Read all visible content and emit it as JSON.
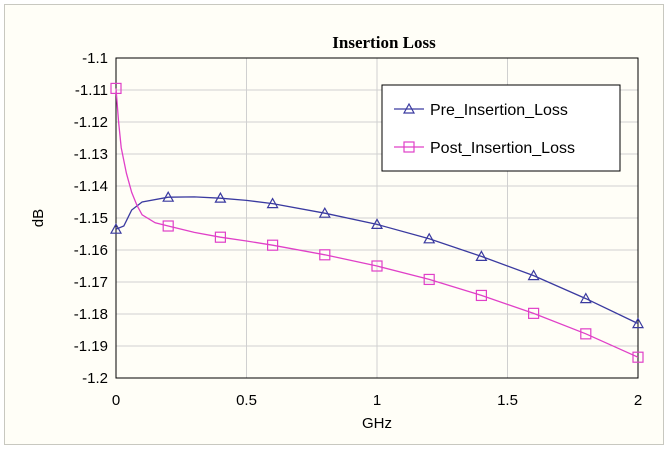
{
  "chart_data": {
    "type": "line",
    "title": "Insertion Loss",
    "xlabel": "GHz",
    "ylabel": "dB",
    "xlim": [
      0,
      2
    ],
    "ylim": [
      -1.2,
      -1.1
    ],
    "xticks": [
      "0",
      "0.5",
      "1",
      "1.5",
      "2"
    ],
    "yticks": [
      "-1.1",
      "-1.11",
      "-1.12",
      "-1.13",
      "-1.14",
      "-1.15",
      "-1.16",
      "-1.17",
      "-1.18",
      "-1.19",
      "-1.2"
    ],
    "grid": true,
    "legend_position": "top-right",
    "series": [
      {
        "name": "Pre_Insertion_Loss",
        "color": "#3a3aa0",
        "marker": "triangle",
        "x": [
          0,
          0.03,
          0.06,
          0.1,
          0.2,
          0.3,
          0.4,
          0.5,
          0.6,
          0.8,
          1.0,
          1.2,
          1.4,
          1.6,
          1.8,
          2.0
        ],
        "y": [
          -1.1535,
          -1.1525,
          -1.1475,
          -1.145,
          -1.1435,
          -1.1434,
          -1.1438,
          -1.1445,
          -1.1455,
          -1.1485,
          -1.152,
          -1.1565,
          -1.162,
          -1.168,
          -1.1752,
          -1.183
        ],
        "marker_x": [
          0,
          0.2,
          0.4,
          0.6,
          0.8,
          1.0,
          1.2,
          1.4,
          1.6,
          1.8,
          2.0
        ],
        "marker_y": [
          -1.1535,
          -1.1435,
          -1.1438,
          -1.1455,
          -1.1485,
          -1.152,
          -1.1565,
          -1.162,
          -1.168,
          -1.1752,
          -1.183
        ]
      },
      {
        "name": "Post_Insertion_Loss",
        "color": "#e040c8",
        "marker": "square",
        "x": [
          0,
          0.01,
          0.02,
          0.04,
          0.06,
          0.08,
          0.1,
          0.15,
          0.2,
          0.3,
          0.4,
          0.5,
          0.6,
          0.8,
          1.0,
          1.2,
          1.4,
          1.6,
          1.8,
          2.0
        ],
        "y": [
          -1.1095,
          -1.12,
          -1.128,
          -1.136,
          -1.142,
          -1.146,
          -1.149,
          -1.1515,
          -1.1525,
          -1.1545,
          -1.156,
          -1.1572,
          -1.1585,
          -1.1615,
          -1.165,
          -1.1692,
          -1.1742,
          -1.1798,
          -1.1862,
          -1.1935
        ],
        "marker_x": [
          0,
          0.2,
          0.4,
          0.6,
          0.8,
          1.0,
          1.2,
          1.4,
          1.6,
          1.8,
          2.0
        ],
        "marker_y": [
          -1.1095,
          -1.1525,
          -1.156,
          -1.1585,
          -1.1615,
          -1.165,
          -1.1692,
          -1.1742,
          -1.1798,
          -1.1862,
          -1.1935
        ]
      }
    ]
  }
}
